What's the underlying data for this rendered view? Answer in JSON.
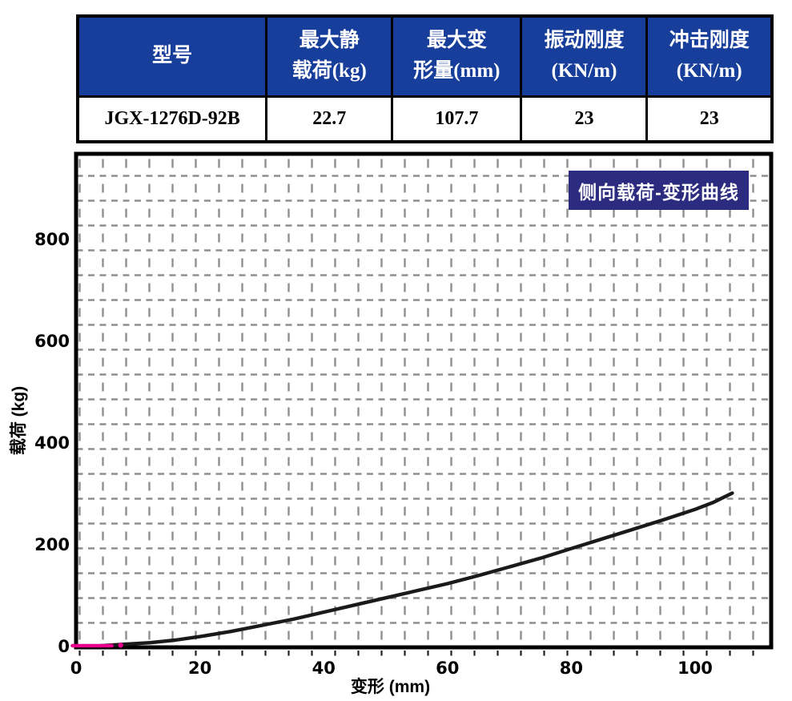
{
  "colors": {
    "header_bg": "#183e9b",
    "badge_bg": "#2b2b80",
    "frame": "#000000",
    "grid": "#8f8f8f",
    "tick_stub": "#222222",
    "curve": "#1a1a1a",
    "accent_magenta": "#e8008c"
  },
  "table": {
    "header": [
      {
        "l1": "型号",
        "l2": ""
      },
      {
        "l1": "最大静",
        "l2": "载荷(kg)"
      },
      {
        "l1": "最大变",
        "l2": "形量(mm)"
      },
      {
        "l1": "振动刚度",
        "l2": "(KN/m)"
      },
      {
        "l1": "冲击刚度",
        "l2": "(KN/m)"
      }
    ],
    "row": [
      "JGX-1276D-92B",
      "22.7",
      "107.7",
      "23",
      "23"
    ]
  },
  "chart_data": {
    "type": "line",
    "title": "侧向载荷-变形曲线",
    "xlabel": "变形 (mm)",
    "ylabel": "载荷 (kg)",
    "xlim": [
      0,
      112
    ],
    "ylim": [
      0,
      968
    ],
    "x_ticks": [
      0,
      20,
      40,
      60,
      80,
      100
    ],
    "y_ticks": [
      0,
      200,
      400,
      600,
      800
    ],
    "grid": "dashed",
    "legend": "none",
    "series": [
      {
        "name": "侧向载荷-变形曲线",
        "color": "#1a1a1a",
        "points": [
          [
            4,
            0
          ],
          [
            8,
            3
          ],
          [
            12,
            6
          ],
          [
            16,
            11
          ],
          [
            20,
            18
          ],
          [
            25,
            28
          ],
          [
            30,
            40
          ],
          [
            35,
            52
          ],
          [
            40,
            66
          ],
          [
            45,
            80
          ],
          [
            50,
            94
          ],
          [
            55,
            108
          ],
          [
            60,
            122
          ],
          [
            65,
            138
          ],
          [
            70,
            155
          ],
          [
            75,
            172
          ],
          [
            80,
            191
          ],
          [
            85,
            210
          ],
          [
            90,
            229
          ],
          [
            95,
            248
          ],
          [
            100,
            268
          ],
          [
            103,
            282
          ],
          [
            106,
            300
          ]
        ]
      },
      {
        "name": "origin-accent-mark",
        "color": "#e8008c",
        "points": [
          [
            -0.6,
            0
          ],
          [
            5.8,
            0
          ]
        ]
      },
      {
        "name": "origin-accent-dot",
        "color": "#e8008c",
        "points": [
          [
            7.2,
            1
          ]
        ]
      }
    ]
  }
}
